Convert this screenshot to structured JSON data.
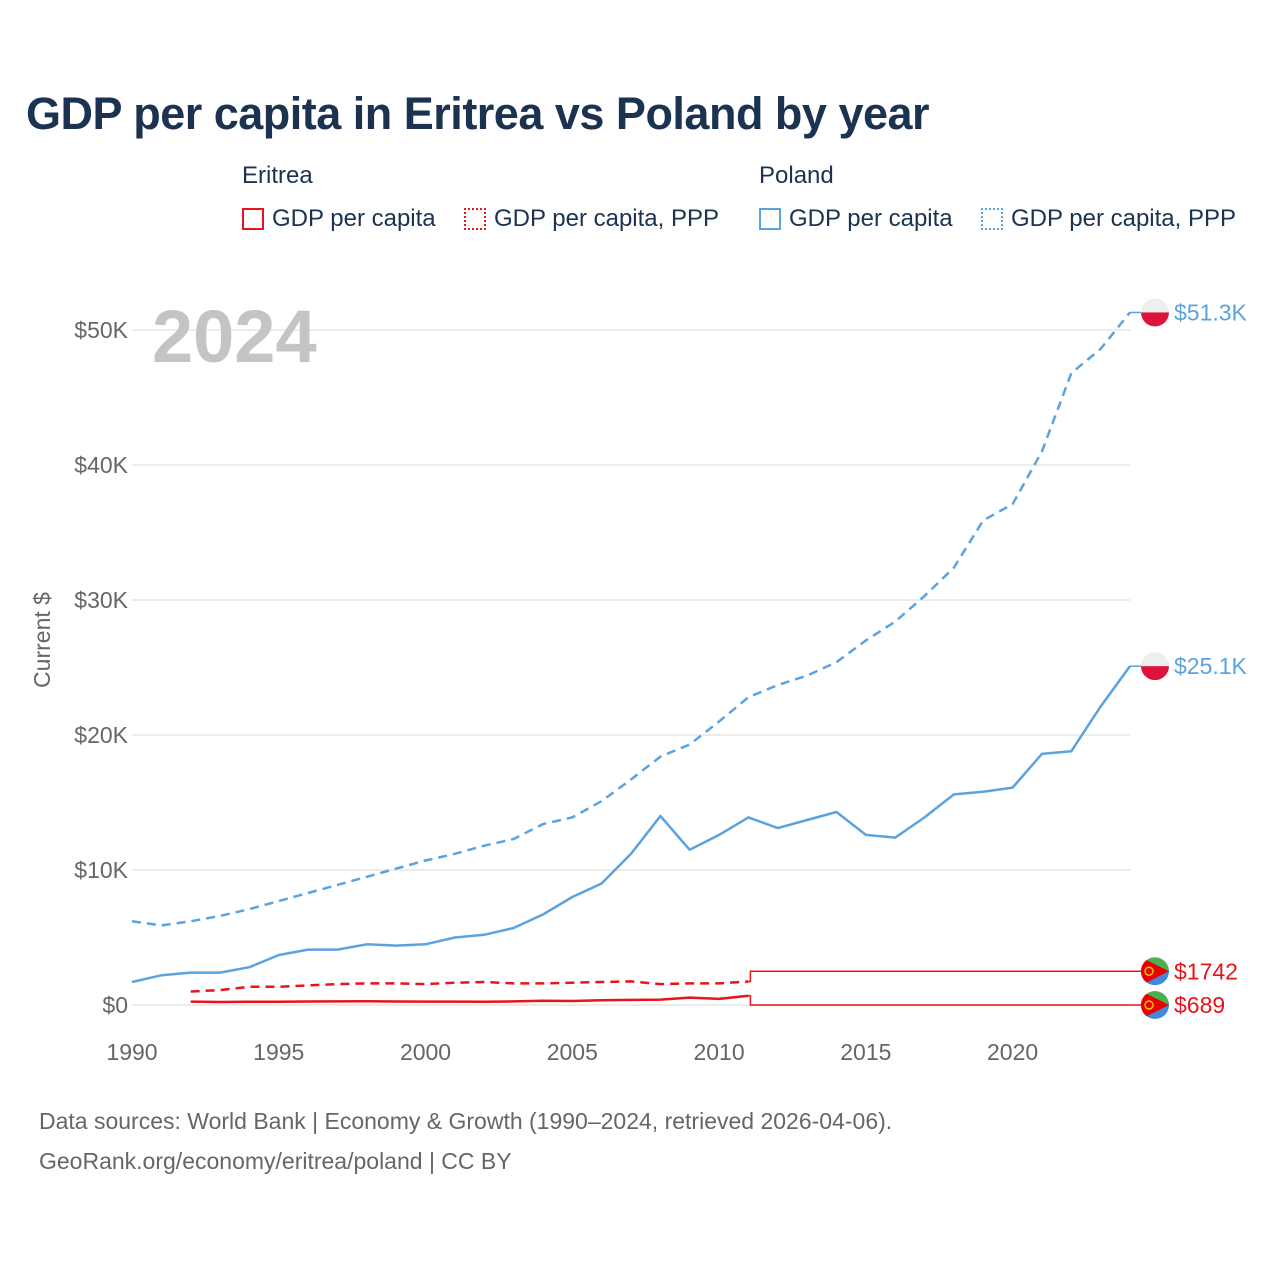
{
  "title": "GDP per capita in Eritrea vs Poland by year",
  "legend": {
    "eritrea": {
      "group": "Eritrea",
      "gdp": "GDP per capita",
      "ppp": "GDP per capita, PPP"
    },
    "poland": {
      "group": "Poland",
      "gdp": "GDP per capita",
      "ppp": "GDP per capita, PPP"
    }
  },
  "colors": {
    "eritrea": "#e8141b",
    "poland": "#5ba3e0",
    "title": "#1b3350",
    "year": "#c4c4c4"
  },
  "year_label": "2024",
  "footer": {
    "line1": "Data sources: World Bank | Economy & Growth (1990–2024, retrieved 2026-04-06).",
    "line2": "GeoRank.org/economy/eritrea/poland | CC BY"
  },
  "chart_data": {
    "type": "line",
    "title": "GDP per capita in Eritrea vs Poland by year",
    "ylabel": "Current $",
    "xlim": [
      1990,
      2024
    ],
    "ylim": [
      0,
      50000
    ],
    "xticks": [
      "1990",
      "1995",
      "2000",
      "2005",
      "2010",
      "2015",
      "2020"
    ],
    "yticks": [
      "$0",
      "$10K",
      "$20K",
      "$30K",
      "$40K",
      "$50K"
    ],
    "series": [
      {
        "name": "Poland GDP per capita, PPP",
        "key": "pol_ppp",
        "country": "poland",
        "dashed": true,
        "end_label": "$51.3K",
        "x": [
          1990,
          1991,
          1992,
          1993,
          1994,
          1995,
          1996,
          1997,
          1998,
          1999,
          2000,
          2001,
          2002,
          2003,
          2004,
          2005,
          2006,
          2007,
          2008,
          2009,
          2010,
          2011,
          2012,
          2013,
          2014,
          2015,
          2016,
          2017,
          2018,
          2019,
          2020,
          2021,
          2022,
          2023,
          2024
        ],
        "values": [
          6200,
          5900,
          6200,
          6600,
          7100,
          7700,
          8300,
          8900,
          9500,
          10100,
          10700,
          11200,
          11800,
          12300,
          13400,
          13900,
          15100,
          16700,
          18400,
          19300,
          21000,
          22800,
          23700,
          24400,
          25400,
          27000,
          28400,
          30300,
          32400,
          35900,
          37100,
          41000,
          46800,
          48600,
          51300
        ]
      },
      {
        "name": "Poland GDP per capita",
        "key": "pol_gdp",
        "country": "poland",
        "dashed": false,
        "end_label": "$25.1K",
        "x": [
          1990,
          1991,
          1992,
          1993,
          1994,
          1995,
          1996,
          1997,
          1998,
          1999,
          2000,
          2001,
          2002,
          2003,
          2004,
          2005,
          2006,
          2007,
          2008,
          2009,
          2010,
          2011,
          2012,
          2013,
          2014,
          2015,
          2016,
          2017,
          2018,
          2019,
          2020,
          2021,
          2022,
          2023,
          2024
        ],
        "values": [
          1700,
          2200,
          2400,
          2400,
          2800,
          3700,
          4100,
          4100,
          4500,
          4400,
          4500,
          5000,
          5200,
          5700,
          6700,
          8000,
          9000,
          11200,
          14000,
          11500,
          12600,
          13900,
          13100,
          13700,
          14300,
          12600,
          12400,
          13900,
          15600,
          15800,
          16100,
          18600,
          18800,
          22100,
          25100
        ]
      },
      {
        "name": "Eritrea GDP per capita, PPP",
        "key": "eri_ppp",
        "country": "eritrea",
        "dashed": true,
        "end_label": "$1742",
        "x": [
          1992,
          1993,
          1994,
          1995,
          1996,
          1997,
          1998,
          1999,
          2000,
          2001,
          2002,
          2003,
          2004,
          2005,
          2006,
          2007,
          2008,
          2009,
          2010,
          2011
        ],
        "values": [
          1000,
          1100,
          1350,
          1350,
          1450,
          1550,
          1600,
          1600,
          1550,
          1650,
          1700,
          1600,
          1600,
          1650,
          1700,
          1750,
          1550,
          1600,
          1600,
          1742
        ]
      },
      {
        "name": "Eritrea GDP per capita",
        "key": "eri_gdp",
        "country": "eritrea",
        "dashed": false,
        "end_label": "$689",
        "x": [
          1992,
          1993,
          1994,
          1995,
          1996,
          1997,
          1998,
          1999,
          2000,
          2001,
          2002,
          2003,
          2004,
          2005,
          2006,
          2007,
          2008,
          2009,
          2010,
          2011
        ],
        "values": [
          250,
          220,
          240,
          240,
          260,
          270,
          280,
          260,
          250,
          250,
          240,
          270,
          320,
          300,
          350,
          380,
          400,
          550,
          450,
          689
        ]
      }
    ]
  }
}
